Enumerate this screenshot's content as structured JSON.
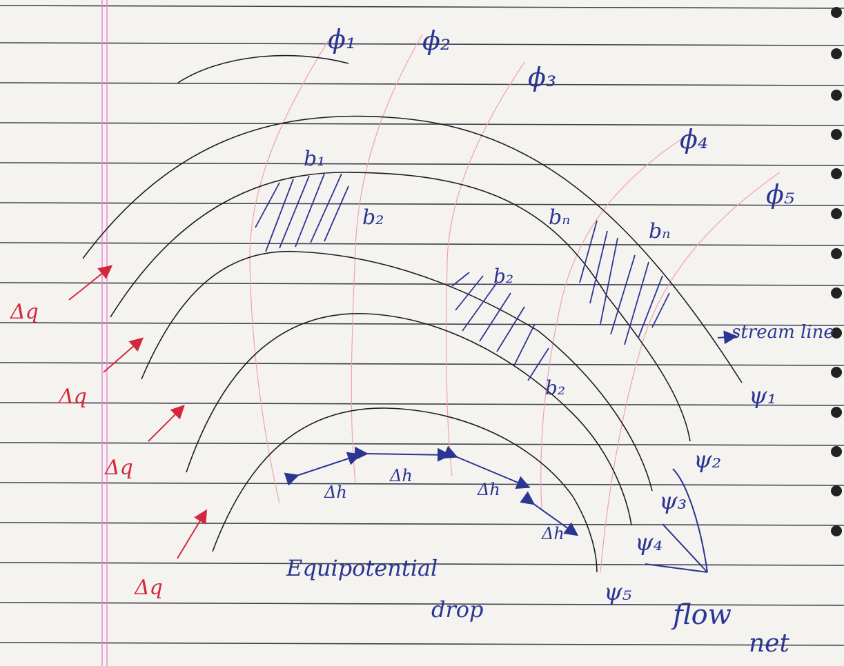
{
  "equipotential_lines": [
    "ϕ₁",
    "ϕ₂",
    "ϕ₃",
    "ϕ₄",
    "ϕ₅"
  ],
  "stream_lines": [
    "ψ₁",
    "ψ₂",
    "ψ₃",
    "ψ₄",
    "ψ₅"
  ],
  "widths": [
    "b₁",
    "b₂",
    "bₙ",
    "bₙ",
    "b₂",
    "b₂"
  ],
  "flow_increments": [
    "Δq",
    "Δq",
    "Δq",
    "Δq"
  ],
  "head_drops": [
    "Δh",
    "Δh",
    "Δh",
    "Δh"
  ],
  "annotations": {
    "stream_line": "stream line",
    "equipotential_drop": [
      "Equipotential",
      "drop"
    ],
    "flow_net": [
      "flow",
      "net"
    ]
  }
}
